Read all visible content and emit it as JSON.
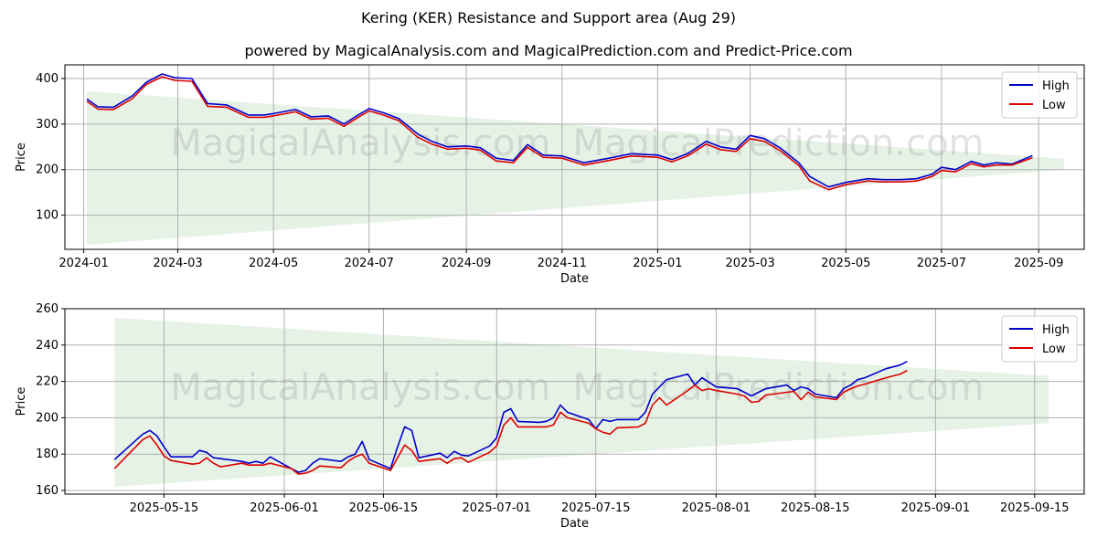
{
  "title": "Kering (KER) Resistance and Support area (Aug 29)",
  "subtitle": "powered by MagicalAnalysis.com and MagicalPrediction.com and Predict-Price.com",
  "watermarks": [
    "MagicalAnalysis.com",
    "MagicalPrediction.com"
  ],
  "colors": {
    "high": "#0000cc",
    "low": "#dd0000",
    "band": "#d4ead4",
    "grid": "#b0b0b0"
  },
  "chart_data": [
    {
      "type": "line",
      "xlabel": "Date",
      "ylabel": "Price",
      "xlim": [
        "2023-12-20",
        "2025-09-30"
      ],
      "ylim": [
        25,
        430
      ],
      "yticks": [
        100,
        200,
        300,
        400
      ],
      "xticks": [
        {
          "date": "2024-01-01",
          "label": "2024-01"
        },
        {
          "date": "2024-03-01",
          "label": "2024-03"
        },
        {
          "date": "2024-05-01",
          "label": "2024-05"
        },
        {
          "date": "2024-07-01",
          "label": "2024-07"
        },
        {
          "date": "2024-09-01",
          "label": "2024-09"
        },
        {
          "date": "2024-11-01",
          "label": "2024-11"
        },
        {
          "date": "2025-01-01",
          "label": "2025-01"
        },
        {
          "date": "2025-03-01",
          "label": "2025-03"
        },
        {
          "date": "2025-05-01",
          "label": "2025-05"
        },
        {
          "date": "2025-07-01",
          "label": "2025-07"
        },
        {
          "date": "2025-09-01",
          "label": "2025-09"
        }
      ],
      "grid": true,
      "legend": "top-right",
      "band": {
        "x": [
          "2024-01-03",
          "2025-09-17"
        ],
        "upper": [
          372,
          224
        ],
        "lower": [
          35,
          200
        ]
      },
      "series": [
        {
          "name": "High",
          "x": [
            "2024-01-03",
            "2024-01-10",
            "2024-01-20",
            "2024-02-01",
            "2024-02-10",
            "2024-02-20",
            "2024-02-28",
            "2024-03-10",
            "2024-03-20",
            "2024-04-01",
            "2024-04-15",
            "2024-04-25",
            "2024-05-01",
            "2024-05-15",
            "2024-05-25",
            "2024-06-05",
            "2024-06-15",
            "2024-06-25",
            "2024-07-01",
            "2024-07-10",
            "2024-07-20",
            "2024-08-01",
            "2024-08-10",
            "2024-08-20",
            "2024-09-01",
            "2024-09-10",
            "2024-09-20",
            "2024-10-01",
            "2024-10-10",
            "2024-10-20",
            "2024-11-01",
            "2024-11-15",
            "2024-12-01",
            "2024-12-15",
            "2025-01-01",
            "2025-01-10",
            "2025-01-20",
            "2025-02-01",
            "2025-02-10",
            "2025-02-20",
            "2025-03-01",
            "2025-03-10",
            "2025-03-20",
            "2025-04-01",
            "2025-04-08",
            "2025-04-20",
            "2025-05-01",
            "2025-05-15",
            "2025-05-25",
            "2025-06-05",
            "2025-06-15",
            "2025-06-25",
            "2025-07-01",
            "2025-07-10",
            "2025-07-20",
            "2025-07-28",
            "2025-08-05",
            "2025-08-15",
            "2025-08-28"
          ],
          "y": [
            355,
            338,
            337,
            362,
            392,
            410,
            402,
            400,
            345,
            342,
            320,
            320,
            323,
            332,
            316,
            318,
            300,
            322,
            334,
            325,
            312,
            278,
            262,
            250,
            252,
            248,
            225,
            220,
            255,
            232,
            230,
            215,
            225,
            235,
            232,
            222,
            235,
            262,
            250,
            245,
            275,
            268,
            248,
            215,
            185,
            162,
            172,
            180,
            178,
            178,
            180,
            190,
            205,
            200,
            218,
            210,
            215,
            212,
            231
          ]
        },
        {
          "name": "Low",
          "x": [
            "2024-01-03",
            "2024-01-10",
            "2024-01-20",
            "2024-02-01",
            "2024-02-10",
            "2024-02-20",
            "2024-02-28",
            "2024-03-10",
            "2024-03-20",
            "2024-04-01",
            "2024-04-15",
            "2024-04-25",
            "2024-05-01",
            "2024-05-15",
            "2024-05-25",
            "2024-06-05",
            "2024-06-15",
            "2024-06-25",
            "2024-07-01",
            "2024-07-10",
            "2024-07-20",
            "2024-08-01",
            "2024-08-10",
            "2024-08-20",
            "2024-09-01",
            "2024-09-10",
            "2024-09-20",
            "2024-10-01",
            "2024-10-10",
            "2024-10-20",
            "2024-11-01",
            "2024-11-15",
            "2024-12-01",
            "2024-12-15",
            "2025-01-01",
            "2025-01-10",
            "2025-01-20",
            "2025-02-01",
            "2025-02-10",
            "2025-02-20",
            "2025-03-01",
            "2025-03-10",
            "2025-03-20",
            "2025-04-01",
            "2025-04-08",
            "2025-04-20",
            "2025-05-01",
            "2025-05-15",
            "2025-05-25",
            "2025-06-05",
            "2025-06-15",
            "2025-06-25",
            "2025-07-01",
            "2025-07-10",
            "2025-07-20",
            "2025-07-28",
            "2025-08-05",
            "2025-08-15",
            "2025-08-28"
          ],
          "y": [
            350,
            333,
            332,
            356,
            387,
            404,
            396,
            394,
            339,
            337,
            315,
            315,
            318,
            327,
            311,
            313,
            295,
            317,
            329,
            320,
            307,
            271,
            256,
            245,
            247,
            243,
            219,
            215,
            249,
            227,
            225,
            210,
            220,
            230,
            227,
            217,
            230,
            256,
            244,
            240,
            268,
            262,
            242,
            209,
            175,
            156,
            167,
            175,
            173,
            173,
            175,
            185,
            198,
            195,
            213,
            206,
            210,
            210,
            226
          ]
        }
      ]
    },
    {
      "type": "line",
      "xlabel": "Date",
      "ylabel": "Price",
      "xlim": [
        "2025-05-01",
        "2025-09-22"
      ],
      "ylim": [
        158,
        260
      ],
      "yticks": [
        160,
        180,
        200,
        220,
        240,
        260
      ],
      "xticks": [
        {
          "date": "2025-05-15",
          "label": "2025-05-15"
        },
        {
          "date": "2025-06-01",
          "label": "2025-06-01"
        },
        {
          "date": "2025-06-15",
          "label": "2025-06-15"
        },
        {
          "date": "2025-07-01",
          "label": "2025-07-01"
        },
        {
          "date": "2025-07-15",
          "label": "2025-07-15"
        },
        {
          "date": "2025-08-01",
          "label": "2025-08-01"
        },
        {
          "date": "2025-08-15",
          "label": "2025-08-15"
        },
        {
          "date": "2025-09-01",
          "label": "2025-09-01"
        },
        {
          "date": "2025-09-15",
          "label": "2025-09-15"
        }
      ],
      "grid": true,
      "legend": "top-right",
      "band": {
        "x": [
          "2025-05-08",
          "2025-09-17"
        ],
        "upper": [
          255,
          223
        ],
        "lower": [
          162,
          197
        ]
      },
      "series": [
        {
          "name": "High",
          "x": [
            "2025-05-08",
            "2025-05-12",
            "2025-05-13",
            "2025-05-14",
            "2025-05-15",
            "2025-05-16",
            "2025-05-19",
            "2025-05-20",
            "2025-05-21",
            "2025-05-22",
            "2025-05-23",
            "2025-05-26",
            "2025-05-27",
            "2025-05-28",
            "2025-05-29",
            "2025-05-30",
            "2025-06-02",
            "2025-06-03",
            "2025-06-04",
            "2025-06-05",
            "2025-06-06",
            "2025-06-09",
            "2025-06-10",
            "2025-06-11",
            "2025-06-12",
            "2025-06-13",
            "2025-06-16",
            "2025-06-17",
            "2025-06-18",
            "2025-06-19",
            "2025-06-20",
            "2025-06-23",
            "2025-06-24",
            "2025-06-25",
            "2025-06-26",
            "2025-06-27",
            "2025-06-30",
            "2025-07-01",
            "2025-07-02",
            "2025-07-03",
            "2025-07-04",
            "2025-07-07",
            "2025-07-08",
            "2025-07-09",
            "2025-07-10",
            "2025-07-11",
            "2025-07-14",
            "2025-07-15",
            "2025-07-16",
            "2025-07-17",
            "2025-07-18",
            "2025-07-21",
            "2025-07-22",
            "2025-07-23",
            "2025-07-24",
            "2025-07-25",
            "2025-07-28",
            "2025-07-29",
            "2025-07-30",
            "2025-07-31",
            "2025-08-01",
            "2025-08-04",
            "2025-08-05",
            "2025-08-06",
            "2025-08-07",
            "2025-08-08",
            "2025-08-11",
            "2025-08-12",
            "2025-08-13",
            "2025-08-14",
            "2025-08-15",
            "2025-08-18",
            "2025-08-19",
            "2025-08-20",
            "2025-08-21",
            "2025-08-22",
            "2025-08-25",
            "2025-08-26",
            "2025-08-27",
            "2025-08-28"
          ],
          "y": [
            177,
            191,
            193,
            190,
            184,
            178.5,
            178.5,
            182,
            181,
            178,
            177.5,
            176,
            175,
            176,
            175,
            178.5,
            172,
            170,
            171,
            175,
            177.5,
            176,
            178.5,
            180,
            187,
            177,
            172,
            184,
            195,
            193,
            178,
            180.5,
            178,
            181.5,
            179.5,
            179,
            184.5,
            189,
            203,
            205,
            198,
            197.5,
            198,
            200,
            207,
            203,
            199,
            194,
            199,
            198,
            199,
            199,
            203,
            213,
            217,
            221,
            224,
            218,
            222,
            219.5,
            217,
            216,
            214,
            212,
            214,
            216,
            218,
            215,
            217,
            216,
            213,
            211,
            216,
            218,
            221,
            222,
            227,
            228,
            229,
            231
          ]
        },
        {
          "name": "Low",
          "x": [
            "2025-05-08",
            "2025-05-12",
            "2025-05-13",
            "2025-05-14",
            "2025-05-15",
            "2025-05-16",
            "2025-05-19",
            "2025-05-20",
            "2025-05-21",
            "2025-05-22",
            "2025-05-23",
            "2025-05-26",
            "2025-05-27",
            "2025-05-28",
            "2025-05-29",
            "2025-05-30",
            "2025-06-02",
            "2025-06-03",
            "2025-06-04",
            "2025-06-05",
            "2025-06-06",
            "2025-06-09",
            "2025-06-10",
            "2025-06-11",
            "2025-06-12",
            "2025-06-13",
            "2025-06-16",
            "2025-06-17",
            "2025-06-18",
            "2025-06-19",
            "2025-06-20",
            "2025-06-23",
            "2025-06-24",
            "2025-06-25",
            "2025-06-26",
            "2025-06-27",
            "2025-06-30",
            "2025-07-01",
            "2025-07-02",
            "2025-07-03",
            "2025-07-04",
            "2025-07-07",
            "2025-07-08",
            "2025-07-09",
            "2025-07-10",
            "2025-07-11",
            "2025-07-14",
            "2025-07-15",
            "2025-07-16",
            "2025-07-17",
            "2025-07-18",
            "2025-07-21",
            "2025-07-22",
            "2025-07-23",
            "2025-07-24",
            "2025-07-25",
            "2025-07-28",
            "2025-07-29",
            "2025-07-30",
            "2025-07-31",
            "2025-08-01",
            "2025-08-04",
            "2025-08-05",
            "2025-08-06",
            "2025-08-07",
            "2025-08-08",
            "2025-08-11",
            "2025-08-12",
            "2025-08-13",
            "2025-08-14",
            "2025-08-15",
            "2025-08-18",
            "2025-08-19",
            "2025-08-20",
            "2025-08-21",
            "2025-08-22",
            "2025-08-25",
            "2025-08-26",
            "2025-08-27",
            "2025-08-28"
          ],
          "y": [
            172,
            188,
            190,
            185,
            179,
            176.5,
            174.5,
            175,
            178,
            175,
            173,
            175,
            174,
            174,
            174,
            175,
            172,
            169,
            169.5,
            171,
            173.5,
            172.5,
            176,
            178.5,
            180,
            175,
            171,
            178,
            185,
            182,
            176,
            177.5,
            175,
            177.5,
            178,
            175.5,
            181,
            184.5,
            196,
            200,
            195,
            195,
            195,
            196,
            203,
            200,
            197,
            194,
            192,
            191,
            194.5,
            195,
            197,
            207,
            211,
            207,
            215,
            218,
            215,
            216,
            215,
            213,
            212,
            208.5,
            209,
            212.5,
            214,
            214.5,
            210,
            214,
            211.5,
            210,
            214,
            216,
            217.5,
            218.5,
            222,
            223,
            224,
            226
          ]
        }
      ]
    }
  ]
}
